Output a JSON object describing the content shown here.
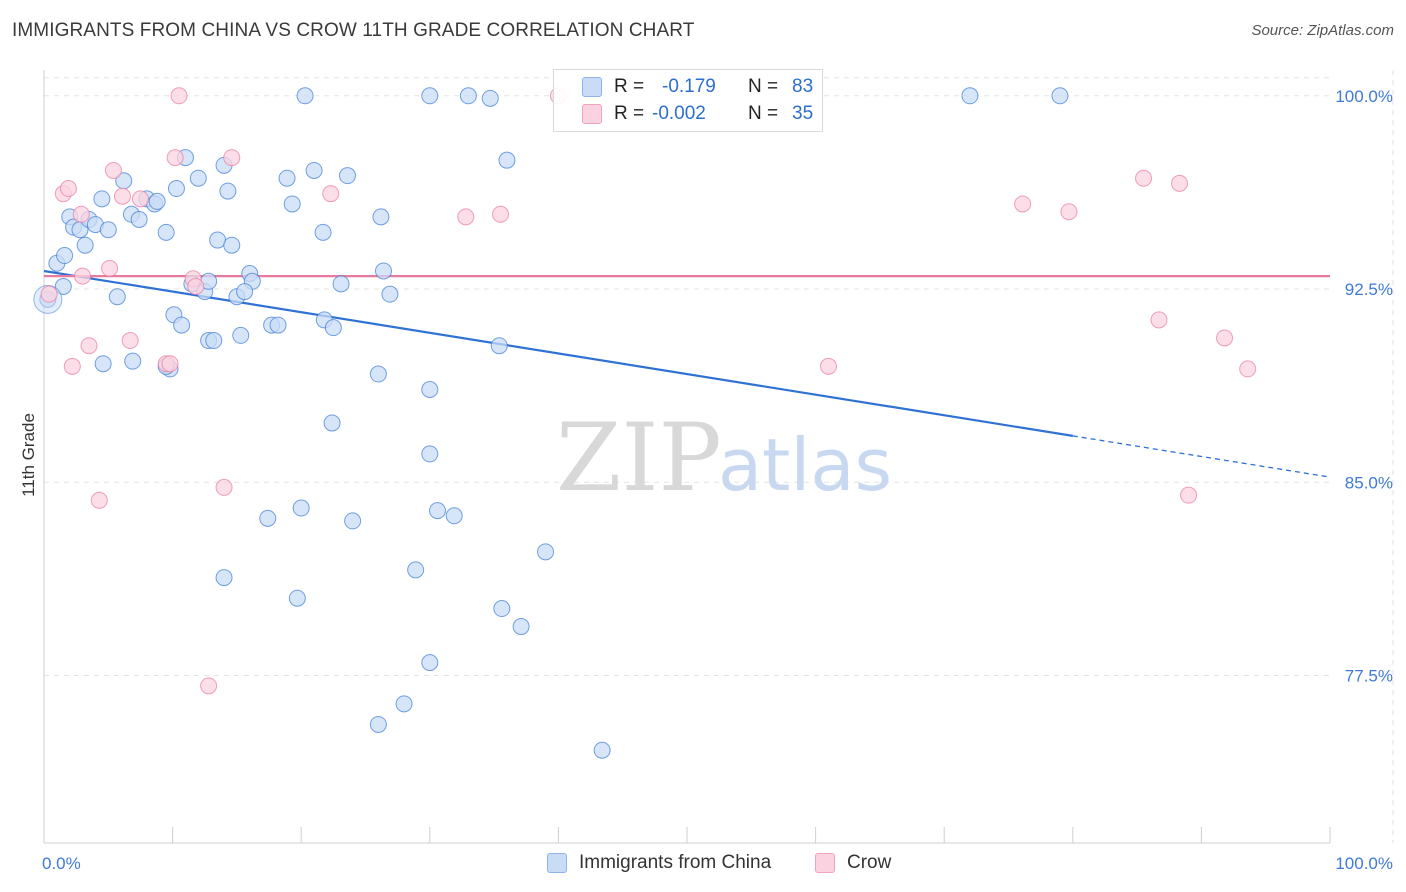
{
  "header": {
    "title": "IMMIGRANTS FROM CHINA VS CROW 11TH GRADE CORRELATION CHART",
    "source": "Source: ZipAtlas.com"
  },
  "watermark": {
    "zip": "ZIP",
    "atlas": "atlas"
  },
  "legend": {
    "rows": [
      {
        "r_label": "R =",
        "r_value": "-0.179",
        "n_label": "N =",
        "n_value": "83",
        "color": "#8db4ec",
        "fill": "#c9dcf6"
      },
      {
        "r_label": "R =",
        "r_value": "-0.002",
        "n_label": "N =",
        "n_value": "35",
        "color": "#f0a3bd",
        "fill": "#fbd3e0"
      }
    ]
  },
  "bottom_legend": [
    {
      "label": "Immigrants from China",
      "color": "#8db4ec",
      "fill": "#c9dcf6"
    },
    {
      "label": "Crow",
      "color": "#f0a3bd",
      "fill": "#fbd3e0"
    }
  ],
  "chart_data": {
    "type": "scatter",
    "title": "IMMIGRANTS FROM CHINA VS CROW 11TH GRADE CORRELATION CHART",
    "xlabel": "",
    "ylabel": "11th Grade",
    "xlim": [
      0,
      100
    ],
    "ylim": [
      71.0,
      101.0
    ],
    "x_tick_labels": [
      "0.0%",
      "100.0%"
    ],
    "y_ticks": [
      77.5,
      85.0,
      92.5,
      100.0
    ],
    "y_tick_labels": [
      "77.5%",
      "85.0%",
      "92.5%",
      "100.0%"
    ],
    "grid": true,
    "legend_position": "top-center",
    "series": [
      {
        "name": "Immigrants from China",
        "color": "#3a7bd5",
        "points": [
          [
            0.3,
            92.1
          ],
          [
            1.0,
            93.5
          ],
          [
            1.5,
            92.6
          ],
          [
            2.0,
            95.3
          ],
          [
            2.3,
            94.9
          ],
          [
            2.8,
            94.8
          ],
          [
            3.2,
            94.2
          ],
          [
            3.5,
            95.2
          ],
          [
            4.0,
            95.0
          ],
          [
            4.5,
            96.0
          ],
          [
            5.0,
            94.8
          ],
          [
            4.6,
            89.6
          ],
          [
            5.7,
            92.2
          ],
          [
            6.2,
            96.7
          ],
          [
            6.9,
            89.7
          ],
          [
            6.8,
            95.4
          ],
          [
            7.4,
            95.2
          ],
          [
            8.0,
            96.0
          ],
          [
            8.6,
            95.8
          ],
          [
            8.8,
            95.9
          ],
          [
            9.5,
            94.7
          ],
          [
            9.8,
            89.4
          ],
          [
            10.1,
            91.5
          ],
          [
            10.3,
            96.4
          ],
          [
            10.7,
            91.1
          ],
          [
            11.0,
            97.6
          ],
          [
            11.5,
            92.7
          ],
          [
            12.0,
            96.8
          ],
          [
            12.5,
            92.4
          ],
          [
            12.8,
            90.5
          ],
          [
            13.2,
            90.5
          ],
          [
            13.5,
            94.4
          ],
          [
            14.0,
            97.3
          ],
          [
            14.3,
            96.3
          ],
          [
            14.6,
            94.2
          ],
          [
            15.0,
            92.2
          ],
          [
            15.3,
            90.7
          ],
          [
            16.0,
            93.1
          ],
          [
            16.2,
            92.8
          ],
          [
            15.6,
            92.4
          ],
          [
            17.7,
            91.1
          ],
          [
            18.2,
            91.1
          ],
          [
            18.9,
            96.8
          ],
          [
            19.3,
            95.8
          ],
          [
            20.3,
            100.0
          ],
          [
            21.0,
            97.1
          ],
          [
            21.7,
            94.7
          ],
          [
            21.8,
            91.3
          ],
          [
            22.5,
            91.0
          ],
          [
            23.1,
            92.7
          ],
          [
            23.6,
            96.9
          ],
          [
            26.4,
            93.2
          ],
          [
            26.9,
            92.3
          ],
          [
            26.2,
            95.3
          ],
          [
            12.8,
            92.8
          ],
          [
            9.5,
            89.5
          ],
          [
            30.0,
            100.0
          ],
          [
            33.0,
            100.0
          ],
          [
            34.7,
            99.9
          ],
          [
            36.0,
            97.5
          ],
          [
            35.4,
            90.3
          ],
          [
            30.0,
            88.6
          ],
          [
            26.0,
            89.2
          ],
          [
            22.4,
            87.3
          ],
          [
            30.0,
            86.1
          ],
          [
            30.6,
            83.9
          ],
          [
            31.9,
            83.7
          ],
          [
            24.0,
            83.5
          ],
          [
            20.0,
            84.0
          ],
          [
            17.4,
            83.6
          ],
          [
            14.0,
            81.3
          ],
          [
            19.7,
            80.5
          ],
          [
            39.0,
            82.3
          ],
          [
            35.6,
            80.1
          ],
          [
            37.1,
            79.4
          ],
          [
            30.0,
            78.0
          ],
          [
            28.0,
            76.4
          ],
          [
            26.0,
            75.6
          ],
          [
            43.4,
            74.6
          ],
          [
            79.0,
            100.0
          ],
          [
            72.0,
            100.0
          ],
          [
            1.6,
            93.8
          ],
          [
            28.9,
            81.6
          ]
        ],
        "trend": {
          "x0": 0,
          "y0": 93.2,
          "x1": 80,
          "y1": 86.8,
          "dash_to_x": 100,
          "dash_to_y": 85.2
        }
      },
      {
        "name": "Crow",
        "color": "#e8799f",
        "points": [
          [
            0.4,
            92.3
          ],
          [
            1.5,
            96.2
          ],
          [
            1.9,
            96.4
          ],
          [
            2.2,
            89.5
          ],
          [
            2.9,
            95.4
          ],
          [
            3.0,
            93.0
          ],
          [
            3.5,
            90.3
          ],
          [
            4.3,
            84.3
          ],
          [
            5.1,
            93.3
          ],
          [
            5.4,
            97.1
          ],
          [
            6.1,
            96.1
          ],
          [
            6.7,
            90.5
          ],
          [
            7.5,
            96.0
          ],
          [
            9.5,
            89.6
          ],
          [
            9.8,
            89.6
          ],
          [
            10.2,
            97.6
          ],
          [
            11.6,
            92.9
          ],
          [
            11.8,
            92.6
          ],
          [
            14.6,
            97.6
          ],
          [
            14.0,
            84.8
          ],
          [
            12.8,
            77.1
          ],
          [
            22.3,
            96.2
          ],
          [
            32.8,
            95.3
          ],
          [
            35.5,
            95.4
          ],
          [
            61.0,
            89.5
          ],
          [
            76.1,
            95.8
          ],
          [
            79.7,
            95.5
          ],
          [
            85.5,
            96.8
          ],
          [
            86.7,
            91.3
          ],
          [
            88.3,
            96.6
          ],
          [
            89.0,
            84.5
          ],
          [
            91.8,
            90.6
          ],
          [
            93.6,
            89.4
          ],
          [
            10.5,
            100.0
          ],
          [
            40.0,
            100.0
          ]
        ],
        "trend": {
          "x0": 0,
          "y0": 93.0,
          "x1": 100,
          "y1": 93.0
        }
      }
    ]
  }
}
